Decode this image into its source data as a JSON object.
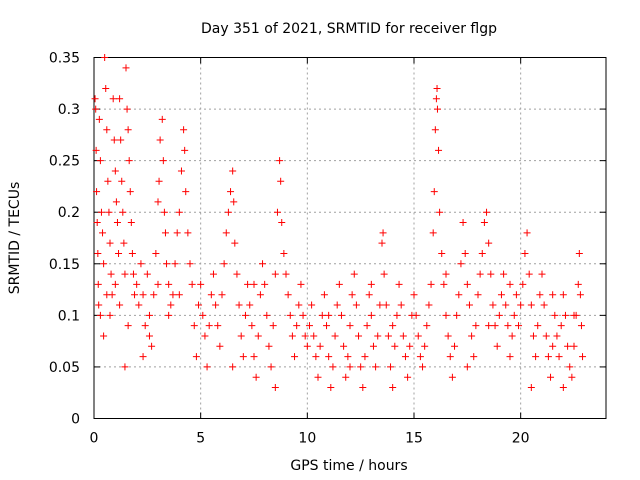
{
  "chart_data": {
    "type": "scatter",
    "title": "Day 351 of 2021, SRMTID for receiver flgp",
    "xlabel": "GPS time / hours",
    "ylabel": "SRMTID / TECUs",
    "xlim": [
      0,
      24
    ],
    "ylim": [
      0,
      0.35
    ],
    "x_ticks": [
      0,
      5,
      10,
      15,
      20
    ],
    "x_tick_labels": [
      "0",
      "5",
      "10",
      "15",
      "20"
    ],
    "y_ticks": [
      0,
      0.05,
      0.1,
      0.15,
      0.2,
      0.25,
      0.3,
      0.35
    ],
    "y_tick_labels": [
      "0",
      "0.05",
      "0.1",
      "0.15",
      "0.2",
      "0.25",
      "0.3",
      "0.35"
    ],
    "grid": true,
    "marker": "+",
    "color": "#ff0000",
    "series": [
      {
        "name": "SRMTID",
        "points": [
          [
            0.05,
            0.31
          ],
          [
            0.08,
            0.3
          ],
          [
            0.1,
            0.26
          ],
          [
            0.12,
            0.22
          ],
          [
            0.15,
            0.19
          ],
          [
            0.18,
            0.16
          ],
          [
            0.2,
            0.13
          ],
          [
            0.22,
            0.11
          ],
          [
            0.25,
            0.29
          ],
          [
            0.3,
            0.25
          ],
          [
            0.35,
            0.2
          ],
          [
            0.4,
            0.18
          ],
          [
            0.45,
            0.15
          ],
          [
            0.5,
            0.35
          ],
          [
            0.55,
            0.32
          ],
          [
            0.6,
            0.28
          ],
          [
            0.65,
            0.23
          ],
          [
            0.7,
            0.2
          ],
          [
            0.75,
            0.17
          ],
          [
            0.8,
            0.14
          ],
          [
            0.85,
            0.12
          ],
          [
            0.9,
            0.31
          ],
          [
            0.95,
            0.27
          ],
          [
            1.0,
            0.24
          ],
          [
            1.05,
            0.21
          ],
          [
            1.1,
            0.19
          ],
          [
            1.15,
            0.16
          ],
          [
            1.2,
            0.31
          ],
          [
            1.25,
            0.27
          ],
          [
            1.3,
            0.23
          ],
          [
            1.35,
            0.2
          ],
          [
            1.4,
            0.17
          ],
          [
            1.45,
            0.14
          ],
          [
            1.5,
            0.34
          ],
          [
            1.55,
            0.3
          ],
          [
            1.6,
            0.28
          ],
          [
            1.65,
            0.25
          ],
          [
            1.7,
            0.22
          ],
          [
            1.75,
            0.19
          ],
          [
            1.8,
            0.16
          ],
          [
            1.85,
            0.14
          ],
          [
            1.9,
            0.12
          ],
          [
            0.3,
            0.1
          ],
          [
            0.45,
            0.08
          ],
          [
            0.6,
            0.12
          ],
          [
            0.75,
            0.1
          ],
          [
            1.0,
            0.13
          ],
          [
            1.2,
            0.11
          ],
          [
            1.45,
            0.05
          ],
          [
            1.6,
            0.09
          ],
          [
            2.0,
            0.13
          ],
          [
            2.1,
            0.11
          ],
          [
            2.2,
            0.15
          ],
          [
            2.3,
            0.12
          ],
          [
            2.4,
            0.09
          ],
          [
            2.5,
            0.14
          ],
          [
            2.6,
            0.1
          ],
          [
            2.7,
            0.07
          ],
          [
            2.8,
            0.12
          ],
          [
            2.9,
            0.16
          ],
          [
            3.0,
            0.21
          ],
          [
            3.05,
            0.23
          ],
          [
            3.1,
            0.27
          ],
          [
            3.2,
            0.29
          ],
          [
            3.25,
            0.25
          ],
          [
            3.3,
            0.2
          ],
          [
            3.35,
            0.18
          ],
          [
            3.4,
            0.15
          ],
          [
            3.5,
            0.13
          ],
          [
            3.6,
            0.11
          ],
          [
            3.7,
            0.12
          ],
          [
            3.8,
            0.15
          ],
          [
            3.9,
            0.18
          ],
          [
            4.0,
            0.2
          ],
          [
            4.1,
            0.24
          ],
          [
            4.2,
            0.28
          ],
          [
            4.25,
            0.26
          ],
          [
            4.3,
            0.22
          ],
          [
            4.4,
            0.18
          ],
          [
            4.5,
            0.15
          ],
          [
            4.6,
            0.13
          ],
          [
            4.7,
            0.09
          ],
          [
            4.8,
            0.06
          ],
          [
            4.9,
            0.11
          ],
          [
            5.0,
            0.13
          ],
          [
            2.3,
            0.06
          ],
          [
            2.6,
            0.08
          ],
          [
            3.0,
            0.13
          ],
          [
            3.5,
            0.1
          ],
          [
            4.0,
            0.12
          ],
          [
            5.1,
            0.1
          ],
          [
            5.2,
            0.08
          ],
          [
            5.3,
            0.05
          ],
          [
            5.4,
            0.09
          ],
          [
            5.5,
            0.12
          ],
          [
            5.6,
            0.14
          ],
          [
            5.7,
            0.11
          ],
          [
            5.8,
            0.09
          ],
          [
            5.9,
            0.07
          ],
          [
            6.0,
            0.12
          ],
          [
            6.1,
            0.15
          ],
          [
            6.2,
            0.18
          ],
          [
            6.3,
            0.2
          ],
          [
            6.4,
            0.22
          ],
          [
            6.5,
            0.24
          ],
          [
            6.55,
            0.21
          ],
          [
            6.6,
            0.17
          ],
          [
            6.7,
            0.14
          ],
          [
            6.8,
            0.11
          ],
          [
            6.9,
            0.08
          ],
          [
            7.0,
            0.06
          ],
          [
            7.1,
            0.1
          ],
          [
            7.2,
            0.13
          ],
          [
            7.3,
            0.11
          ],
          [
            7.4,
            0.09
          ],
          [
            7.5,
            0.06
          ],
          [
            7.6,
            0.04
          ],
          [
            7.7,
            0.08
          ],
          [
            7.8,
            0.12
          ],
          [
            7.9,
            0.15
          ],
          [
            8.0,
            0.13
          ],
          [
            8.1,
            0.1
          ],
          [
            8.2,
            0.07
          ],
          [
            8.3,
            0.05
          ],
          [
            8.4,
            0.09
          ],
          [
            8.5,
            0.14
          ],
          [
            8.6,
            0.2
          ],
          [
            8.7,
            0.25
          ],
          [
            8.75,
            0.23
          ],
          [
            8.8,
            0.19
          ],
          [
            8.9,
            0.16
          ],
          [
            9.0,
            0.14
          ],
          [
            9.1,
            0.12
          ],
          [
            9.2,
            0.1
          ],
          [
            9.3,
            0.08
          ],
          [
            9.4,
            0.06
          ],
          [
            9.5,
            0.09
          ],
          [
            9.6,
            0.11
          ],
          [
            9.7,
            0.13
          ],
          [
            9.8,
            0.1
          ],
          [
            9.9,
            0.08
          ],
          [
            6.5,
            0.05
          ],
          [
            7.5,
            0.13
          ],
          [
            8.5,
            0.03
          ],
          [
            10.0,
            0.07
          ],
          [
            10.1,
            0.09
          ],
          [
            10.2,
            0.11
          ],
          [
            10.3,
            0.08
          ],
          [
            10.4,
            0.06
          ],
          [
            10.5,
            0.04
          ],
          [
            10.6,
            0.07
          ],
          [
            10.7,
            0.1
          ],
          [
            10.8,
            0.12
          ],
          [
            10.9,
            0.09
          ],
          [
            11.0,
            0.06
          ],
          [
            11.1,
            0.03
          ],
          [
            11.2,
            0.05
          ],
          [
            11.3,
            0.08
          ],
          [
            11.4,
            0.11
          ],
          [
            11.5,
            0.13
          ],
          [
            11.6,
            0.1
          ],
          [
            11.7,
            0.07
          ],
          [
            11.8,
            0.04
          ],
          [
            11.9,
            0.06
          ],
          [
            12.0,
            0.09
          ],
          [
            12.1,
            0.12
          ],
          [
            12.2,
            0.14
          ],
          [
            12.3,
            0.11
          ],
          [
            12.4,
            0.08
          ],
          [
            12.5,
            0.05
          ],
          [
            12.6,
            0.03
          ],
          [
            12.7,
            0.06
          ],
          [
            12.8,
            0.09
          ],
          [
            12.9,
            0.12
          ],
          [
            13.0,
            0.1
          ],
          [
            13.1,
            0.07
          ],
          [
            13.2,
            0.05
          ],
          [
            13.3,
            0.08
          ],
          [
            13.4,
            0.11
          ],
          [
            13.5,
            0.17
          ],
          [
            13.55,
            0.18
          ],
          [
            13.6,
            0.14
          ],
          [
            13.7,
            0.11
          ],
          [
            13.8,
            0.08
          ],
          [
            13.9,
            0.05
          ],
          [
            14.0,
            0.03
          ],
          [
            14.1,
            0.07
          ],
          [
            14.2,
            0.1
          ],
          [
            14.3,
            0.13
          ],
          [
            14.4,
            0.11
          ],
          [
            14.5,
            0.08
          ],
          [
            14.6,
            0.06
          ],
          [
            14.7,
            0.04
          ],
          [
            14.8,
            0.07
          ],
          [
            14.9,
            0.1
          ],
          [
            11.0,
            0.1
          ],
          [
            12.0,
            0.05
          ],
          [
            13.0,
            0.13
          ],
          [
            14.0,
            0.09
          ],
          [
            15.0,
            0.12
          ],
          [
            15.1,
            0.1
          ],
          [
            15.2,
            0.08
          ],
          [
            15.3,
            0.06
          ],
          [
            15.4,
            0.05
          ],
          [
            15.5,
            0.07
          ],
          [
            15.6,
            0.09
          ],
          [
            15.7,
            0.11
          ],
          [
            15.8,
            0.13
          ],
          [
            15.9,
            0.18
          ],
          [
            15.95,
            0.22
          ],
          [
            16.0,
            0.28
          ],
          [
            16.05,
            0.31
          ],
          [
            16.08,
            0.32
          ],
          [
            16.1,
            0.3
          ],
          [
            16.15,
            0.26
          ],
          [
            16.2,
            0.2
          ],
          [
            16.3,
            0.16
          ],
          [
            16.4,
            0.13
          ],
          [
            16.5,
            0.1
          ],
          [
            16.6,
            0.08
          ],
          [
            16.7,
            0.06
          ],
          [
            16.8,
            0.04
          ],
          [
            16.9,
            0.07
          ],
          [
            17.0,
            0.1
          ],
          [
            17.1,
            0.12
          ],
          [
            17.2,
            0.15
          ],
          [
            17.3,
            0.19
          ],
          [
            17.4,
            0.16
          ],
          [
            17.5,
            0.13
          ],
          [
            17.6,
            0.11
          ],
          [
            17.7,
            0.08
          ],
          [
            17.8,
            0.06
          ],
          [
            17.9,
            0.09
          ],
          [
            18.0,
            0.12
          ],
          [
            18.1,
            0.14
          ],
          [
            18.2,
            0.16
          ],
          [
            18.3,
            0.19
          ],
          [
            18.4,
            0.2
          ],
          [
            18.5,
            0.17
          ],
          [
            18.6,
            0.14
          ],
          [
            18.7,
            0.11
          ],
          [
            18.8,
            0.09
          ],
          [
            18.9,
            0.07
          ],
          [
            19.0,
            0.1
          ],
          [
            19.1,
            0.12
          ],
          [
            19.2,
            0.14
          ],
          [
            19.3,
            0.11
          ],
          [
            19.4,
            0.09
          ],
          [
            19.5,
            0.06
          ],
          [
            19.6,
            0.08
          ],
          [
            19.7,
            0.1
          ],
          [
            19.8,
            0.12
          ],
          [
            19.9,
            0.09
          ],
          [
            16.5,
            0.14
          ],
          [
            17.5,
            0.05
          ],
          [
            18.5,
            0.09
          ],
          [
            19.5,
            0.13
          ],
          [
            20.0,
            0.11
          ],
          [
            20.1,
            0.13
          ],
          [
            20.2,
            0.16
          ],
          [
            20.3,
            0.18
          ],
          [
            20.4,
            0.14
          ],
          [
            20.5,
            0.11
          ],
          [
            20.6,
            0.08
          ],
          [
            20.7,
            0.06
          ],
          [
            20.8,
            0.09
          ],
          [
            20.9,
            0.12
          ],
          [
            21.0,
            0.14
          ],
          [
            21.1,
            0.11
          ],
          [
            21.2,
            0.08
          ],
          [
            21.3,
            0.06
          ],
          [
            21.4,
            0.04
          ],
          [
            21.5,
            0.07
          ],
          [
            21.6,
            0.1
          ],
          [
            21.7,
            0.08
          ],
          [
            21.8,
            0.06
          ],
          [
            21.9,
            0.09
          ],
          [
            22.0,
            0.12
          ],
          [
            22.1,
            0.1
          ],
          [
            22.2,
            0.07
          ],
          [
            22.3,
            0.05
          ],
          [
            22.4,
            0.04
          ],
          [
            22.5,
            0.07
          ],
          [
            22.6,
            0.1
          ],
          [
            22.7,
            0.13
          ],
          [
            22.75,
            0.16
          ],
          [
            22.8,
            0.12
          ],
          [
            22.85,
            0.09
          ],
          [
            22.9,
            0.06
          ],
          [
            20.5,
            0.03
          ],
          [
            21.5,
            0.12
          ],
          [
            22.0,
            0.03
          ],
          [
            22.5,
            0.1
          ]
        ]
      }
    ]
  }
}
